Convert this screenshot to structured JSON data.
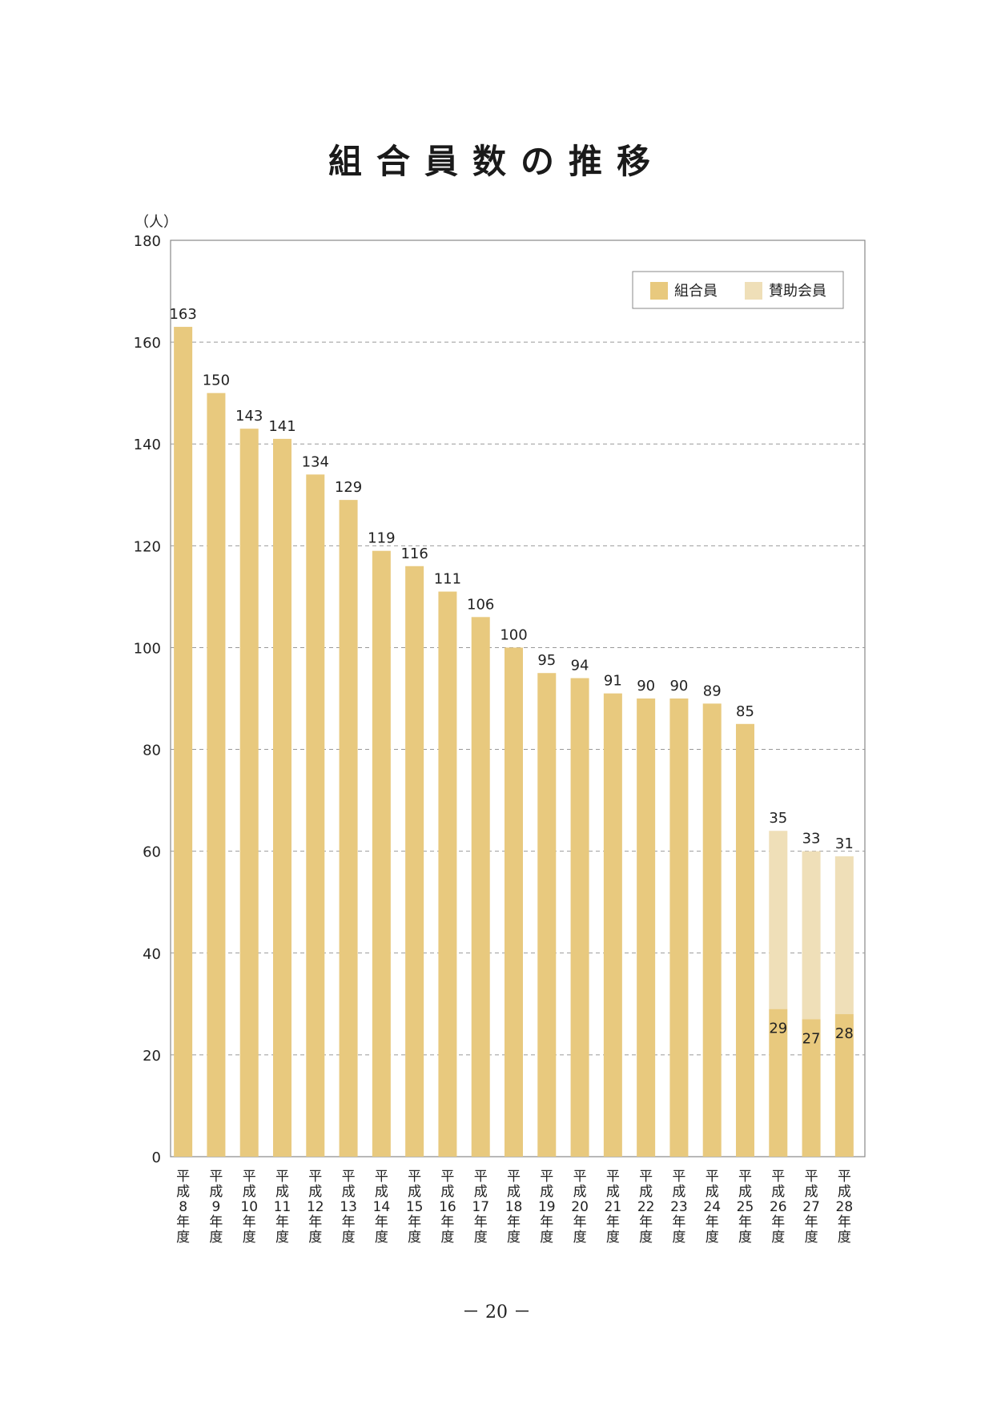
{
  "page": {
    "title": "組合員数の推移",
    "page_number": "－ 20 －"
  },
  "colors": {
    "member": "#E8C97E",
    "supporting_member": "#EFDFB8",
    "grid": "#999999",
    "axis": "#888888"
  },
  "chart_data": {
    "type": "bar",
    "stacked": true,
    "unit_label": "（人）",
    "ylim": [
      0,
      180
    ],
    "yticks": [
      0,
      20,
      40,
      60,
      80,
      100,
      120,
      140,
      160,
      180
    ],
    "grid": "dashed horizontal",
    "legend_position": "top-right",
    "categories": [
      "平成8年度",
      "平成9年度",
      "平成10年度",
      "平成11年度",
      "平成12年度",
      "平成13年度",
      "平成14年度",
      "平成15年度",
      "平成16年度",
      "平成17年度",
      "平成18年度",
      "平成19年度",
      "平成20年度",
      "平成21年度",
      "平成22年度",
      "平成23年度",
      "平成24年度",
      "平成25年度",
      "平成26年度",
      "平成27年度",
      "平成28年度"
    ],
    "category_lines": [
      [
        "平",
        "成",
        "8",
        "年",
        "度"
      ],
      [
        "平",
        "成",
        "9",
        "年",
        "度"
      ],
      [
        "平",
        "成",
        "10",
        "年",
        "度"
      ],
      [
        "平",
        "成",
        "11",
        "年",
        "度"
      ],
      [
        "平",
        "成",
        "12",
        "年",
        "度"
      ],
      [
        "平",
        "成",
        "13",
        "年",
        "度"
      ],
      [
        "平",
        "成",
        "14",
        "年",
        "度"
      ],
      [
        "平",
        "成",
        "15",
        "年",
        "度"
      ],
      [
        "平",
        "成",
        "16",
        "年",
        "度"
      ],
      [
        "平",
        "成",
        "17",
        "年",
        "度"
      ],
      [
        "平",
        "成",
        "18",
        "年",
        "度"
      ],
      [
        "平",
        "成",
        "19",
        "年",
        "度"
      ],
      [
        "平",
        "成",
        "20",
        "年",
        "度"
      ],
      [
        "平",
        "成",
        "21",
        "年",
        "度"
      ],
      [
        "平",
        "成",
        "22",
        "年",
        "度"
      ],
      [
        "平",
        "成",
        "23",
        "年",
        "度"
      ],
      [
        "平",
        "成",
        "24",
        "年",
        "度"
      ],
      [
        "平",
        "成",
        "25",
        "年",
        "度"
      ],
      [
        "平",
        "成",
        "26",
        "年",
        "度"
      ],
      [
        "平",
        "成",
        "27",
        "年",
        "度"
      ],
      [
        "平",
        "成",
        "28",
        "年",
        "度"
      ]
    ],
    "series": [
      {
        "name": "組合員",
        "key": "member",
        "values": [
          163,
          150,
          143,
          141,
          134,
          129,
          119,
          116,
          111,
          106,
          100,
          95,
          94,
          91,
          90,
          90,
          89,
          85,
          29,
          27,
          28
        ]
      },
      {
        "name": "賛助会員",
        "key": "supporting_member",
        "values": [
          null,
          null,
          null,
          null,
          null,
          null,
          null,
          null,
          null,
          null,
          null,
          null,
          null,
          null,
          null,
          null,
          null,
          null,
          35,
          33,
          31
        ]
      }
    ]
  }
}
